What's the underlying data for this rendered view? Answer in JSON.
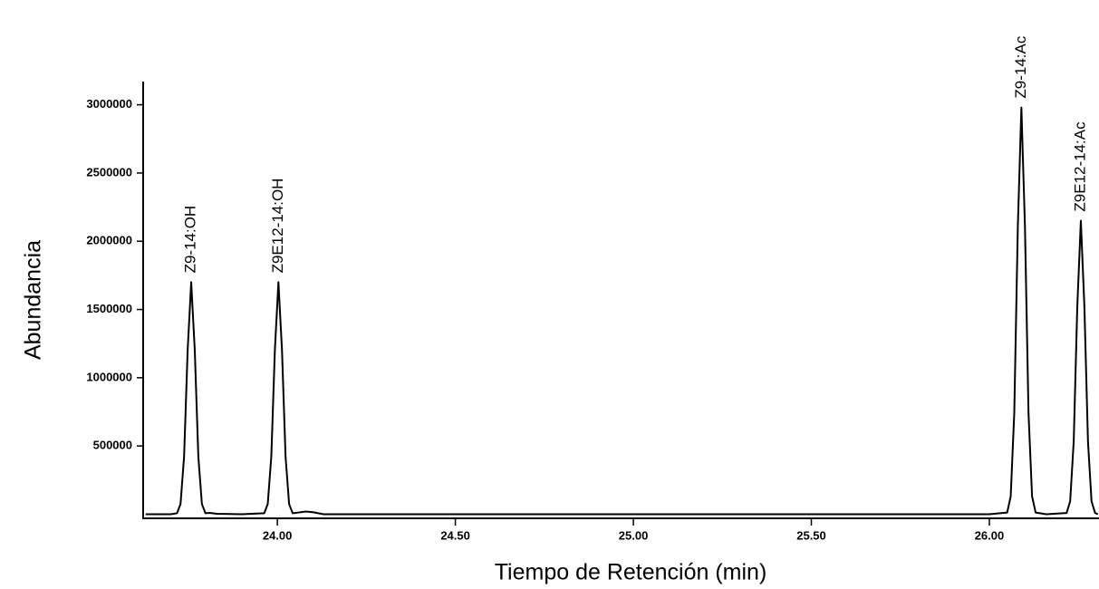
{
  "chart_data": {
    "type": "line",
    "x_label": "Tiempo de Retención (min)",
    "y_label": "Abundancia",
    "x": [
      23.63,
      23.7,
      23.718,
      23.728,
      23.738,
      23.748,
      23.758,
      23.768,
      23.778,
      23.788,
      23.798,
      23.81,
      23.83,
      23.9,
      23.963,
      23.973,
      23.983,
      23.993,
      24.003,
      24.013,
      24.023,
      24.033,
      24.043,
      24.08,
      24.1,
      24.13,
      25.0,
      26.0,
      26.05,
      26.06,
      26.07,
      26.08,
      26.09,
      26.1,
      26.11,
      26.12,
      26.13,
      26.16,
      26.217,
      26.227,
      26.237,
      26.247,
      26.257,
      26.267,
      26.277,
      26.287,
      26.297,
      26.305
    ],
    "series": [
      {
        "color": "#000000",
        "values": [
          0,
          0,
          7000,
          75000,
          423000,
          1202000,
          1700000,
          1202000,
          423000,
          75000,
          7000,
          10000,
          3000,
          0,
          7000,
          75000,
          423000,
          1202000,
          1700000,
          1202000,
          423000,
          75000,
          7000,
          20000,
          15000,
          0,
          0,
          0,
          12000,
          131000,
          742000,
          2107000,
          2980000,
          2107000,
          742000,
          131000,
          12000,
          0,
          9000,
          95000,
          535000,
          1520000,
          2150000,
          1520000,
          535000,
          95000,
          9000,
          0
        ]
      }
    ],
    "annotations": [
      {
        "text": "Z9-14:OH",
        "x": 23.758,
        "y": 1700000
      },
      {
        "text": "Z9E12-14:OH",
        "x": 24.003,
        "y": 1700000
      },
      {
        "text": "Z9-14:Ac",
        "x": 26.09,
        "y": 2980000
      },
      {
        "text": "Z9E12-14:Ac",
        "x": 26.257,
        "y": 2150000
      }
    ],
    "xlim": [
      23.623,
      26.308
    ],
    "ylim": [
      -30000,
      3170000
    ],
    "xticks": [
      {
        "value": 24,
        "label": "24.00"
      },
      {
        "value": 24.5,
        "label": "24.50"
      },
      {
        "value": 25,
        "label": "25.00"
      },
      {
        "value": 25.5,
        "label": "25.50"
      },
      {
        "value": 26,
        "label": "26.00"
      }
    ],
    "yticks": [
      500000,
      1000000,
      1500000,
      2000000,
      2500000,
      3000000
    ],
    "grid": false
  }
}
